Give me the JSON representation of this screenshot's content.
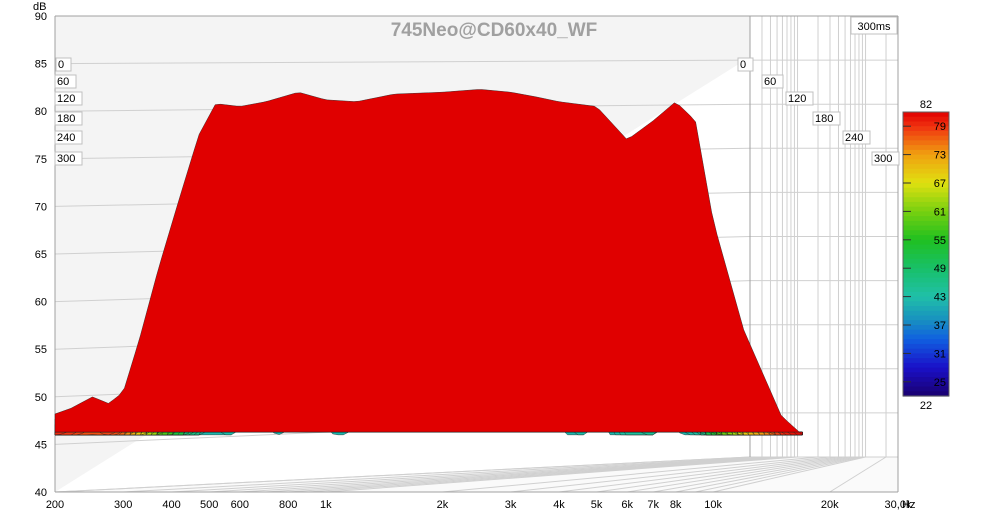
{
  "chart_data": {
    "type": "waterfall",
    "title": "745Neo@CD60x40_WF",
    "time_window_label": "300ms",
    "ylabel": "dB",
    "xunit": "Hz",
    "ylim": [
      40,
      90
    ],
    "yticks": [
      "40",
      "45",
      "50",
      "55",
      "60",
      "65",
      "70",
      "75",
      "80",
      "85",
      "90"
    ],
    "xlim": [
      200,
      30000
    ],
    "xscale": "log",
    "xticks": [
      {
        "value": 200,
        "label": "200"
      },
      {
        "value": 300,
        "label": "300"
      },
      {
        "value": 400,
        "label": "400"
      },
      {
        "value": 500,
        "label": "500"
      },
      {
        "value": 600,
        "label": "600"
      },
      {
        "value": 800,
        "label": "800"
      },
      {
        "value": 1000,
        "label": "1k"
      },
      {
        "value": 2000,
        "label": "2k"
      },
      {
        "value": 3000,
        "label": "3k"
      },
      {
        "value": 4000,
        "label": "4k"
      },
      {
        "value": 5000,
        "label": "5k"
      },
      {
        "value": 6000,
        "label": "6k"
      },
      {
        "value": 7000,
        "label": "7k"
      },
      {
        "value": 8000,
        "label": "8k"
      },
      {
        "value": 10000,
        "label": "10k"
      },
      {
        "value": 20000,
        "label": "20k"
      },
      {
        "value": 30000,
        "label": "30,0k"
      }
    ],
    "time_ticks": [
      "0",
      "60",
      "120",
      "180",
      "240",
      "300"
    ],
    "time_range_ms": [
      0,
      300
    ],
    "slice_count": 60,
    "front_response_db": [
      {
        "f": 200,
        "db": 48.2
      },
      {
        "f": 220,
        "db": 48.8
      },
      {
        "f": 250,
        "db": 50.0
      },
      {
        "f": 275,
        "db": 49.3
      },
      {
        "f": 300,
        "db": 50.5
      },
      {
        "f": 330,
        "db": 56
      },
      {
        "f": 370,
        "db": 63.5
      },
      {
        "f": 420,
        "db": 71
      },
      {
        "f": 470,
        "db": 77.5
      },
      {
        "f": 520,
        "db": 80.8
      },
      {
        "f": 600,
        "db": 80.5
      },
      {
        "f": 700,
        "db": 81.0
      },
      {
        "f": 850,
        "db": 82.0
      },
      {
        "f": 1000,
        "db": 81.2
      },
      {
        "f": 1200,
        "db": 81.0
      },
      {
        "f": 1500,
        "db": 81.8
      },
      {
        "f": 2000,
        "db": 82.0
      },
      {
        "f": 2500,
        "db": 82.3
      },
      {
        "f": 3000,
        "db": 82.0
      },
      {
        "f": 3500,
        "db": 81.5
      },
      {
        "f": 4000,
        "db": 81.0
      },
      {
        "f": 5000,
        "db": 80.5
      },
      {
        "f": 6000,
        "db": 77.0
      },
      {
        "f": 7000,
        "db": 79.0
      },
      {
        "f": 8000,
        "db": 81.0
      },
      {
        "f": 9000,
        "db": 79.0
      },
      {
        "f": 10000,
        "db": 68.5
      },
      {
        "f": 12000,
        "db": 57
      },
      {
        "f": 15000,
        "db": 48
      },
      {
        "f": 17000,
        "db": 46
      }
    ],
    "colorbar": {
      "min_label": "22",
      "max_label": "82",
      "ticks": [
        "79",
        "73",
        "67",
        "61",
        "55",
        "49",
        "43",
        "37",
        "31",
        "25"
      ],
      "range": [
        22,
        82
      ],
      "colors": [
        {
          "v": 22,
          "c": "#1a0070"
        },
        {
          "v": 28,
          "c": "#1a10c8"
        },
        {
          "v": 34,
          "c": "#1060e0"
        },
        {
          "v": 38,
          "c": "#1890c0"
        },
        {
          "v": 43,
          "c": "#20c0a8"
        },
        {
          "v": 49,
          "c": "#18c068"
        },
        {
          "v": 55,
          "c": "#20c020"
        },
        {
          "v": 61,
          "c": "#78d010"
        },
        {
          "v": 67,
          "c": "#e0e010"
        },
        {
          "v": 73,
          "c": "#f0a010"
        },
        {
          "v": 79,
          "c": "#f03010"
        },
        {
          "v": 82,
          "c": "#e00000"
        }
      ]
    },
    "grid": true,
    "legend_position": "right"
  }
}
